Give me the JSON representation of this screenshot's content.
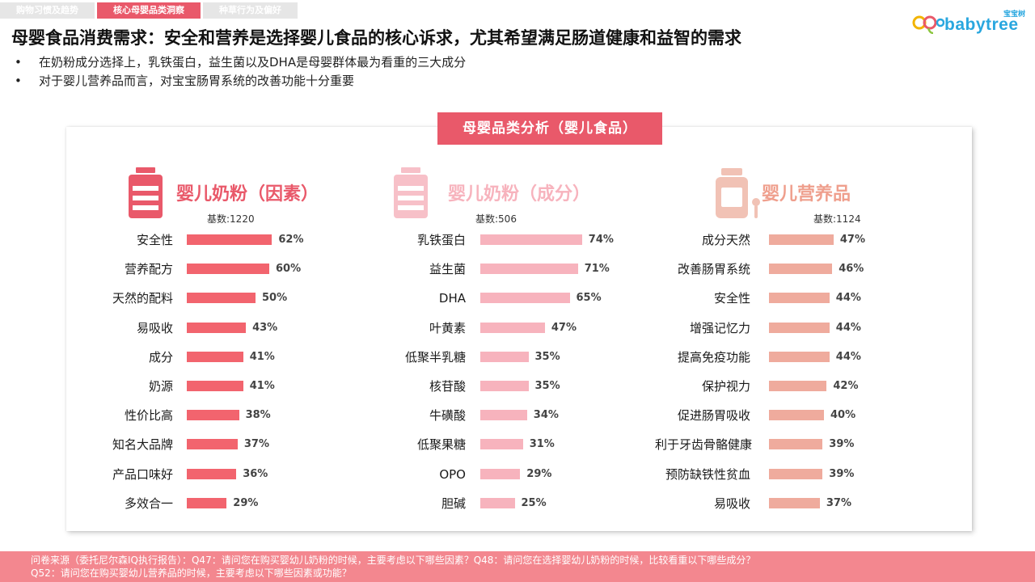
{
  "tabs": [
    {
      "label": "购物习惯及趋势",
      "active": false
    },
    {
      "label": "核心母婴品类洞察",
      "active": true
    },
    {
      "label": "种草行为及偏好",
      "active": false
    }
  ],
  "logo": {
    "cn": "宝宝树",
    "en": "babytree"
  },
  "title": "母婴食品消费需求：安全和营养是选择婴儿食品的核心诉求，尤其希望满足肠道健康和益智的需求",
  "bullets": [
    "在奶粉成分选择上，乳铁蛋白，益生菌以及DHA是母婴群体最为看重的三大成分",
    "对于婴儿营养品而言，对宝宝肠胃系统的改善功能十分重要"
  ],
  "card_title": "母婴品类分析（婴儿食品）",
  "colors": {
    "accent": "#e9596a",
    "panel1": "#f2646e",
    "panel2": "#f7b3bd",
    "panel3": "#efab9d",
    "footer": "#f3878f"
  },
  "chart_data": [
    {
      "type": "bar",
      "orientation": "horizontal",
      "title": "婴儿奶粉（因素）",
      "base": "基数:1220",
      "icon": "milk-can-icon",
      "categories": [
        "安全性",
        "营养配方",
        "天然的配料",
        "易吸收",
        "成分",
        "奶源",
        "性价比高",
        "知名大品牌",
        "产品口味好",
        "多效合一"
      ],
      "values": [
        62,
        60,
        50,
        43,
        41,
        41,
        38,
        37,
        36,
        29
      ],
      "value_labels": [
        "62%",
        "60%",
        "50%",
        "43%",
        "41%",
        "41%",
        "38%",
        "37%",
        "36%",
        "29%"
      ],
      "unit": "%"
    },
    {
      "type": "bar",
      "orientation": "horizontal",
      "title": "婴儿奶粉（成分）",
      "base": "基数:506",
      "icon": "milk-can-icon",
      "categories": [
        "乳铁蛋白",
        "益生菌",
        "DHA",
        "叶黄素",
        "低聚半乳糖",
        "核苷酸",
        "牛磺酸",
        "低聚果糖",
        "OPO",
        "胆碱"
      ],
      "values": [
        74,
        71,
        65,
        47,
        35,
        35,
        34,
        31,
        29,
        25
      ],
      "value_labels": [
        "74%",
        "71%",
        "65%",
        "47%",
        "35%",
        "35%",
        "34%",
        "31%",
        "29%",
        "25%"
      ],
      "unit": "%"
    },
    {
      "type": "bar",
      "orientation": "horizontal",
      "title": "婴儿营养品",
      "base": "基数:1124",
      "icon": "supplement-jar-icon",
      "categories": [
        "成分天然",
        "改善肠胃系统",
        "安全性",
        "增强记忆力",
        "提高免疫功能",
        "保护视力",
        "促进肠胃吸收",
        "利于牙齿骨骼健康",
        "预防缺铁性贫血",
        "易吸收"
      ],
      "values": [
        47,
        46,
        44,
        44,
        44,
        42,
        40,
        39,
        39,
        37
      ],
      "value_labels": [
        "47%",
        "46%",
        "44%",
        "44%",
        "44%",
        "42%",
        "40%",
        "39%",
        "39%",
        "37%"
      ],
      "unit": "%"
    }
  ],
  "footer": {
    "line1": "问卷来源（委托尼尔森IQ执行报告）：Q47：请问您在购买婴幼儿奶粉的时候，主要考虑以下哪些因素？Q48：请问您在选择婴幼儿奶粉的时候，比较看重以下哪些成分？",
    "line2": "Q52：请问您在购买婴幼儿营养品的时候，主要考虑以下哪些因素或功能？"
  }
}
